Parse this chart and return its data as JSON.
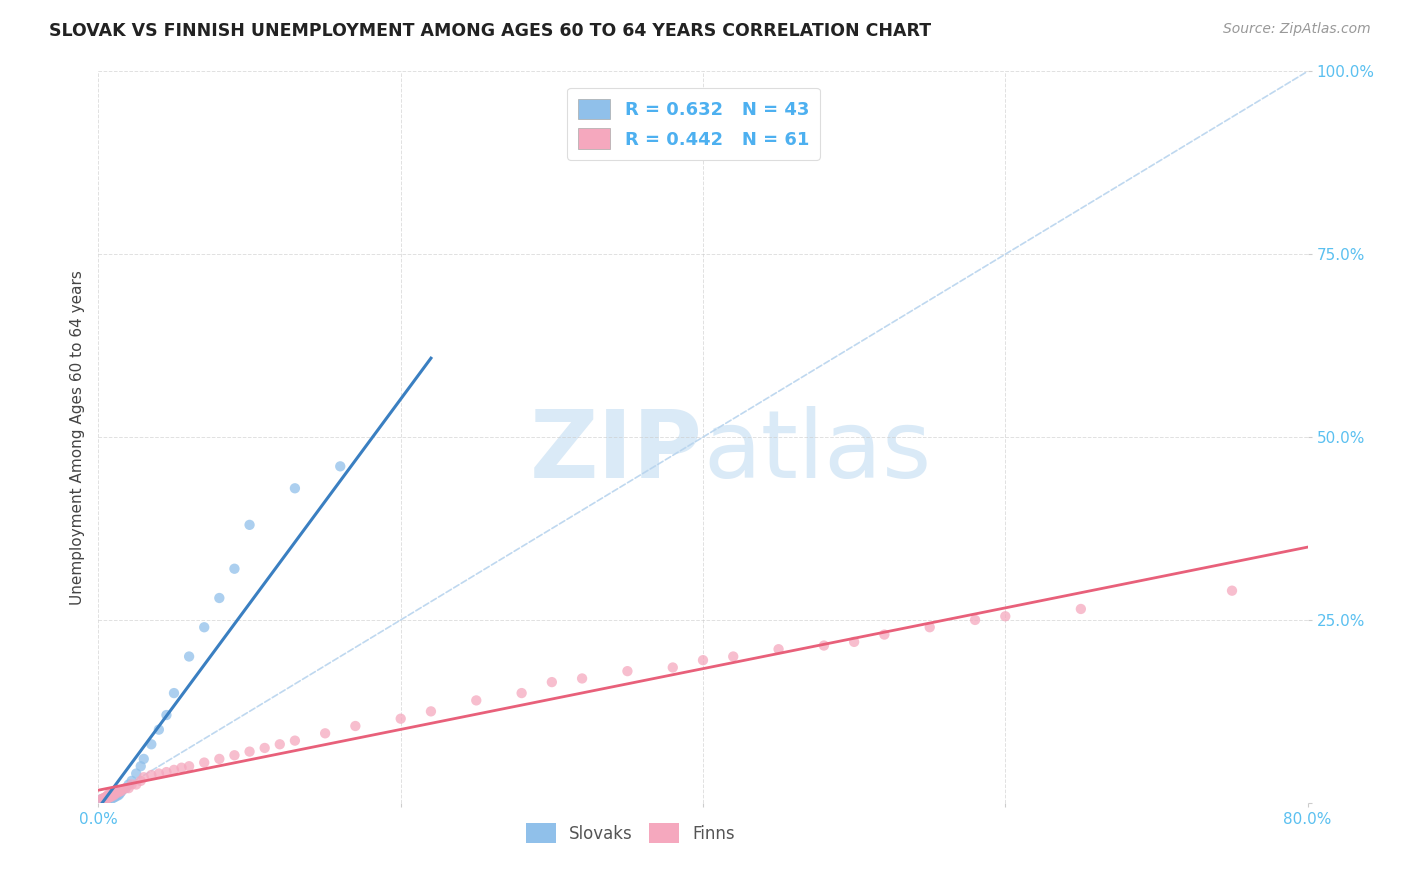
{
  "title": "SLOVAK VS FINNISH UNEMPLOYMENT AMONG AGES 60 TO 64 YEARS CORRELATION CHART",
  "source": "Source: ZipAtlas.com",
  "ylabel": "Unemployment Among Ages 60 to 64 years",
  "xlim": [
    0.0,
    0.8
  ],
  "ylim": [
    0.0,
    1.0
  ],
  "slovak_color": "#90c0ea",
  "finn_color": "#f5a8be",
  "slovak_line_color": "#3a7fc1",
  "finn_line_color": "#e8607a",
  "diag_color": "#b8d4ee",
  "slovak_R": 0.632,
  "slovak_N": 43,
  "finn_R": 0.442,
  "finn_N": 61,
  "legend_text_color": "#4db0f0",
  "background_color": "#ffffff",
  "grid_color": "#cccccc",
  "title_fontsize": 12.5,
  "source_fontsize": 10,
  "axis_label_fontsize": 11,
  "tick_color": "#5bc0f0",
  "watermark_color": "#daeaf7",
  "slovak_x": [
    0.002,
    0.003,
    0.004,
    0.004,
    0.005,
    0.005,
    0.005,
    0.006,
    0.006,
    0.007,
    0.007,
    0.008,
    0.008,
    0.009,
    0.009,
    0.01,
    0.01,
    0.01,
    0.011,
    0.012,
    0.012,
    0.013,
    0.014,
    0.015,
    0.016,
    0.018,
    0.02,
    0.022,
    0.025,
    0.028,
    0.03,
    0.035,
    0.04,
    0.045,
    0.05,
    0.06,
    0.07,
    0.08,
    0.09,
    0.1,
    0.13,
    0.16,
    0.38
  ],
  "slovak_y": [
    0.005,
    0.005,
    0.005,
    0.006,
    0.005,
    0.006,
    0.007,
    0.005,
    0.007,
    0.006,
    0.008,
    0.007,
    0.009,
    0.006,
    0.008,
    0.007,
    0.009,
    0.01,
    0.008,
    0.01,
    0.012,
    0.01,
    0.012,
    0.015,
    0.018,
    0.02,
    0.025,
    0.03,
    0.04,
    0.05,
    0.06,
    0.08,
    0.1,
    0.12,
    0.15,
    0.2,
    0.24,
    0.28,
    0.32,
    0.38,
    0.43,
    0.46,
    0.96
  ],
  "finn_x": [
    0.002,
    0.003,
    0.004,
    0.005,
    0.005,
    0.006,
    0.006,
    0.007,
    0.007,
    0.008,
    0.008,
    0.009,
    0.009,
    0.01,
    0.01,
    0.011,
    0.012,
    0.013,
    0.014,
    0.015,
    0.016,
    0.018,
    0.02,
    0.022,
    0.025,
    0.028,
    0.03,
    0.035,
    0.04,
    0.045,
    0.05,
    0.055,
    0.06,
    0.07,
    0.08,
    0.09,
    0.1,
    0.11,
    0.12,
    0.13,
    0.15,
    0.17,
    0.2,
    0.22,
    0.25,
    0.28,
    0.3,
    0.32,
    0.35,
    0.38,
    0.4,
    0.42,
    0.45,
    0.48,
    0.5,
    0.52,
    0.55,
    0.58,
    0.6,
    0.65,
    0.75
  ],
  "finn_y": [
    0.005,
    0.006,
    0.007,
    0.005,
    0.008,
    0.006,
    0.01,
    0.007,
    0.012,
    0.008,
    0.012,
    0.01,
    0.015,
    0.01,
    0.015,
    0.012,
    0.015,
    0.014,
    0.016,
    0.016,
    0.018,
    0.02,
    0.02,
    0.025,
    0.025,
    0.03,
    0.035,
    0.038,
    0.04,
    0.042,
    0.045,
    0.048,
    0.05,
    0.055,
    0.06,
    0.065,
    0.07,
    0.075,
    0.08,
    0.085,
    0.095,
    0.105,
    0.115,
    0.125,
    0.14,
    0.15,
    0.165,
    0.17,
    0.18,
    0.185,
    0.195,
    0.2,
    0.21,
    0.215,
    0.22,
    0.23,
    0.24,
    0.25,
    0.255,
    0.265,
    0.29
  ]
}
